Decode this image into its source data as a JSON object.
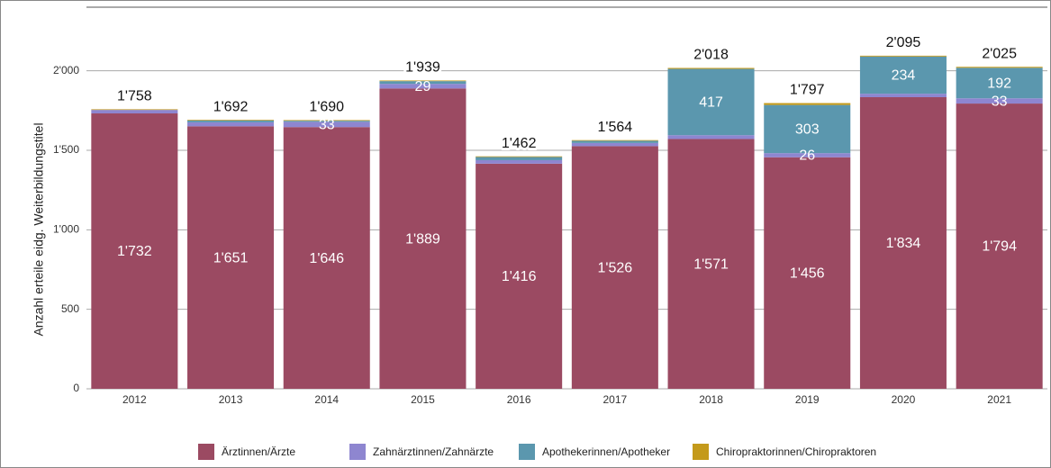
{
  "chart_data": {
    "type": "stacked_bar",
    "y_axis_label": "Anzahl erteile eidg. Weiterbildungstitel",
    "categories": [
      "2012",
      "2013",
      "2014",
      "2015",
      "2016",
      "2017",
      "2018",
      "2019",
      "2020",
      "2021"
    ],
    "series": [
      {
        "name": "Ärztinnen/Ärzte",
        "color": "#9b4a62",
        "values": [
          1732,
          1651,
          1646,
          1889,
          1416,
          1526,
          1571,
          1456,
          1834,
          1794
        ],
        "value_labels": [
          "1'732",
          "1'651",
          "1'646",
          "1'889",
          "1'416",
          "1'526",
          "1'571",
          "1'456",
          "1'834",
          "1'794"
        ]
      },
      {
        "name": "Zahnärztinnen/Zahnärzte",
        "color": "#8e86d0",
        "values": [
          22,
          25,
          33,
          29,
          22,
          20,
          24,
          26,
          22,
          33
        ],
        "value_labels": [
          null,
          null,
          "33",
          "29",
          null,
          null,
          null,
          "26",
          null,
          "33"
        ]
      },
      {
        "name": "Apothekerinnen/Apotheker",
        "color": "#5b97ae",
        "values": [
          0,
          12,
          7,
          17,
          20,
          14,
          417,
          303,
          234,
          192
        ],
        "value_labels": [
          null,
          null,
          null,
          null,
          null,
          null,
          "417",
          "303",
          "234",
          "192"
        ]
      },
      {
        "name": "Chiropraktorinnen/Chiropraktoren",
        "color": "#c49a1b",
        "values": [
          4,
          4,
          4,
          4,
          4,
          4,
          6,
          12,
          5,
          6
        ],
        "value_labels": [
          null,
          null,
          null,
          null,
          null,
          null,
          null,
          null,
          null,
          null
        ]
      }
    ],
    "totals": {
      "values": [
        1758,
        1692,
        1690,
        1939,
        1462,
        1564,
        2018,
        1797,
        2095,
        2025
      ],
      "value_labels": [
        "1'758",
        "1'692",
        "1'690",
        "1'939",
        "1'462",
        "1'564",
        "2'018",
        "1'797",
        "2'095",
        "2'025"
      ]
    },
    "ylim": [
      0,
      2400
    ],
    "yticks": [
      0,
      500,
      {
        "value": 1000,
        "label": "1'000"
      },
      {
        "value": 1500,
        "label": "1'500"
      },
      {
        "value": 2000,
        "label": "2'000"
      }
    ],
    "grid": true,
    "legend": "bottom"
  }
}
